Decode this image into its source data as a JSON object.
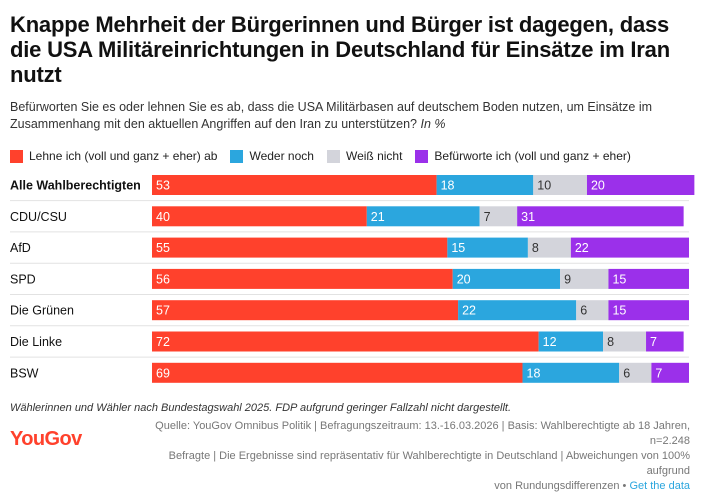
{
  "title": "Knappe Mehrheit der Bürgerinnen und Bürger ist dagegen, dass die USA Militäreinrichtungen in Deutschland für Einsätze im Iran nutzt",
  "subtitle": "Befürworten Sie es oder lehnen Sie es ab, dass die USA Militärbasen auf deutschem Boden nutzen, um Einsätze im Zusammenhang mit den aktuellen Angriffen auf den Iran zu unterstützen?",
  "unit_label": "In %",
  "colors": {
    "lehne_ab": "#ff412c",
    "weder_noch": "#2ba6de",
    "weiss_nicht": "#d3d4db",
    "befuerworte": "#9b30ea"
  },
  "chart_data": {
    "type": "bar",
    "orientation": "horizontal-stacked",
    "unit": "%",
    "xlim": [
      0,
      100
    ],
    "categories": [
      "Alle Wahlberechtigten",
      "CDU/CSU",
      "AfD",
      "SPD",
      "Die Grünen",
      "Die Linke",
      "BSW"
    ],
    "highlight_category": "Alle Wahlberechtigten",
    "series": [
      {
        "name": "Lehne ich (voll und ganz + eher) ab",
        "color": "#ff412c",
        "values": [
          53,
          40,
          55,
          56,
          57,
          72,
          69
        ]
      },
      {
        "name": "Weder noch",
        "color": "#2ba6de",
        "values": [
          18,
          21,
          15,
          20,
          22,
          12,
          18
        ]
      },
      {
        "name": "Weiß nicht",
        "color": "#d3d4db",
        "values": [
          10,
          7,
          8,
          9,
          6,
          8,
          6
        ]
      },
      {
        "name": "Befürworte ich (voll und ganz + eher)",
        "color": "#9b30ea",
        "values": [
          20,
          31,
          22,
          15,
          15,
          7,
          7
        ]
      }
    ]
  },
  "footnote": "Wählerinnen und Wähler nach Bundestagswahl 2025. FDP aufgrund geringer Fallzahl nicht dargestellt.",
  "logo": "YouGov",
  "source": {
    "line1": "Quelle: YouGov Omnibus Politik | Befragungszeitraum: 13.-16.03.2026 | Basis: Wahlberechtigte ab 18 Jahren, n=2.248",
    "line2": "Befragte | Die Ergebnisse sind repräsentativ für Wahlberechtigte in Deutschland | Abweichungen von 100% aufgrund",
    "line3": "von Rundungsdifferenzen",
    "separator": "•",
    "link": "Get the data"
  }
}
